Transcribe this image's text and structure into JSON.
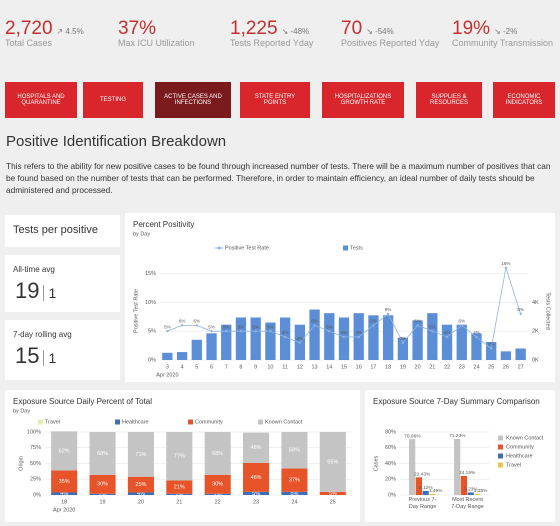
{
  "kpis": [
    {
      "value": "2,720",
      "change": "↗ 4.5%",
      "label": "Total Cases"
    },
    {
      "value": "37%",
      "label": "Max ICU Utilization"
    },
    {
      "value": "1,225",
      "change": "↘ -48%",
      "label": "Tests Reported Yday"
    },
    {
      "value": "70",
      "change": "↘ -54%",
      "label": "Positives Reported Yday"
    },
    {
      "value": "19%",
      "change": "↘ -2%",
      "label": "Community Transmission"
    }
  ],
  "nav": [
    {
      "label": "HOSPITALS AND QUARANTINE",
      "active": false
    },
    {
      "label": "TESTING",
      "active": false
    },
    {
      "label": "ACTIVE CASES AND INFECTIONS",
      "active": true
    },
    {
      "label": "STATE ENTRY POINTS",
      "active": false
    },
    {
      "label": "HOSPITALIZATIONS GROWTH RATE",
      "active": false
    },
    {
      "label": "SUPPLIES & RESOURCES",
      "active": false
    },
    {
      "label": "ECONOMIC INDICATORS",
      "active": false
    }
  ],
  "heading": "Positive Identification Breakdown",
  "description": "This refers to the ability for new positive cases to be found through increased number of tests. There will be a maximum number of positives that can be found based on the number of tests that can be performed. Therefore, in order to maintain efficiency, an ideal number of daily tests should be administered and processed.",
  "tests_per_positive": {
    "title": "Tests per positive",
    "stats": [
      {
        "label": "All-time avg",
        "value": "19",
        "unit": "1"
      },
      {
        "label": "7-day rolling avg",
        "value": "15",
        "unit": "1"
      }
    ]
  },
  "chart_data": [
    {
      "type": "combo",
      "title": "Percent Positivity",
      "subtitle": "by Day",
      "categories": [
        "3",
        "4",
        "5",
        "6",
        "7",
        "8",
        "9",
        "10",
        "11",
        "12",
        "13",
        "14",
        "15",
        "16",
        "17",
        "18",
        "19",
        "20",
        "21",
        "22",
        "23",
        "24",
        "25",
        "26",
        "27"
      ],
      "x_period_label": "Apr 2020",
      "ylabel": "Positive Test Rate",
      "y2label": "Tests Collected",
      "ylim": [
        0,
        17
      ],
      "yticks": [
        {
          "value": 0,
          "label": "0%"
        },
        {
          "value": 5,
          "label": "5%"
        },
        {
          "value": 10,
          "label": "10%"
        },
        {
          "value": 15,
          "label": "15%"
        }
      ],
      "y2lim": [
        0,
        6800
      ],
      "y2ticks": [
        {
          "value": 0,
          "label": "0K"
        },
        {
          "value": 2000,
          "label": "2K"
        },
        {
          "value": 4000,
          "label": "4K"
        }
      ],
      "grid": true,
      "series": [
        {
          "name": "Positive Test Rate",
          "type": "line",
          "color": "#8fb3e0",
          "values": [
            5,
            6,
            6,
            5,
            5,
            5,
            5,
            5,
            4,
            3,
            6,
            5,
            4,
            4,
            6,
            8,
            3,
            6,
            5,
            4,
            6,
            4,
            2,
            16,
            8
          ],
          "value_labels": [
            "5%",
            "6%",
            "6%",
            "5%",
            "5%",
            "5%",
            "5%",
            "5%",
            "4%",
            "3%",
            "6%",
            "5%",
            "4%",
            "4%",
            "6%",
            "8%",
            "3%",
            "6%",
            "5%",
            "4%",
            "6%",
            "4%",
            "2%",
            "16%",
            "8%"
          ]
        },
        {
          "name": "Tests",
          "type": "bar",
          "axis": "y2",
          "color": "#5b8ed6",
          "values": [
            500,
            550,
            1400,
            1850,
            2450,
            2950,
            2950,
            2600,
            2950,
            2450,
            3500,
            3250,
            2950,
            3250,
            3100,
            3100,
            1550,
            2750,
            3250,
            2450,
            2450,
            1850,
            1250,
            600,
            800
          ]
        }
      ]
    },
    {
      "type": "stacked_bar",
      "title": "Exposure Source Daily Percent of Total",
      "subtitle": "by Day",
      "categories": [
        "18",
        "19",
        "20",
        "21",
        "22",
        "23",
        "24",
        "25"
      ],
      "x_period_label": "Apr 2020",
      "ylabel": "Origin",
      "ylim": [
        0,
        100
      ],
      "yticks": [
        {
          "value": 0,
          "label": "0%"
        },
        {
          "value": 25,
          "label": "25%"
        },
        {
          "value": 50,
          "label": "50%"
        },
        {
          "value": 75,
          "label": "75%"
        },
        {
          "value": 100,
          "label": "100%"
        }
      ],
      "grid": true,
      "series": [
        {
          "name": "Travel",
          "color": "#e3efb0",
          "values": [
            0,
            0,
            0,
            0,
            0,
            0,
            0,
            0
          ]
        },
        {
          "name": "Healthcare",
          "color": "#3e6fb5",
          "values": [
            4,
            2,
            4,
            2,
            2,
            5,
            5,
            0
          ],
          "value_labels": [
            "4%",
            "2%",
            "4%",
            "2%",
            "2%",
            "5%",
            "5%",
            null
          ]
        },
        {
          "name": "Community",
          "color": "#e8542a",
          "values": [
            35,
            30,
            25,
            21,
            30,
            46,
            37,
            5
          ],
          "value_labels": [
            "35%",
            "30%",
            "25%",
            "21%",
            "30%",
            "46%",
            "37%",
            "5%"
          ]
        },
        {
          "name": "Known Contact",
          "color": "#c4c4c4",
          "values": [
            62,
            68,
            71,
            77,
            68,
            48,
            58,
            95
          ],
          "value_labels": [
            "62%",
            "68%",
            "71%",
            "77%",
            "68%",
            "48%",
            "58%",
            "95%"
          ]
        }
      ]
    },
    {
      "type": "grouped_bar",
      "title": "Exposure Source 7-Day Summary Comparison",
      "categories": [
        "Previous 7-Day Range",
        "Most Recent 7-Day Range"
      ],
      "ylabel": "Cases",
      "ylim": [
        0,
        80
      ],
      "yticks": [
        {
          "value": 0,
          "label": "0%"
        },
        {
          "value": 20,
          "label": "20%"
        },
        {
          "value": 40,
          "label": "40%"
        },
        {
          "value": 60,
          "label": "60%"
        },
        {
          "value": 80,
          "label": "80%"
        }
      ],
      "grid": true,
      "legend": "right",
      "series": [
        {
          "name": "Known Contact",
          "color": "#c4c4c4",
          "values": [
            70.96,
            71.23
          ],
          "value_labels": [
            "70.96%",
            "71.23%"
          ]
        },
        {
          "name": "Community",
          "color": "#e8542a",
          "values": [
            22.43,
            24.19
          ],
          "value_labels": [
            "22.43%",
            "24.19%"
          ]
        },
        {
          "name": "Healthcare",
          "color": "#3e6fb5",
          "values": [
            5.12,
            3.23
          ],
          "value_labels": [
            "5.12%",
            "3.23%"
          ]
        },
        {
          "name": "Travel",
          "color": "#e8c84a",
          "values": [
            1.49,
            1.35
          ],
          "value_labels": [
            "1.49%",
            "1.35%"
          ]
        }
      ]
    }
  ]
}
